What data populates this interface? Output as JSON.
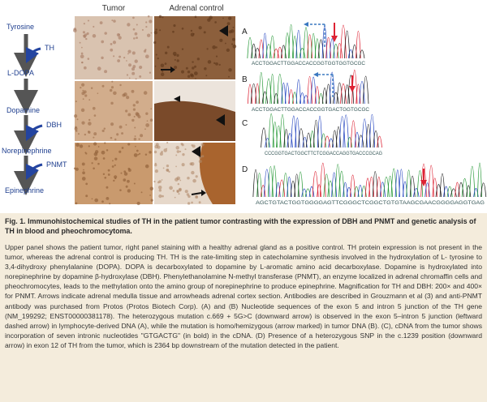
{
  "figure": {
    "pathway": {
      "steps": [
        "Tyrosine",
        "L-DOPA",
        "Dopamine",
        "Norepinephrine",
        "Epinephrine"
      ],
      "enzymes": [
        "TH",
        "DBH",
        "PNMT"
      ]
    },
    "columns": [
      "Tumor",
      "Adrenal control"
    ],
    "panels": [
      {
        "letter": "A",
        "sequence": "ACCTGGACTTGGACCACCGGTGGTGGTGCGC"
      },
      {
        "letter": "B",
        "sequence": "ACCTGGACTTGGACCACCGGTGACTGGTGCGC"
      },
      {
        "letter": "C",
        "sequence": "CCCGGTGACTGGCTTCTCGGACCAGGTGACCCGCAG"
      },
      {
        "letter": "D",
        "sequence": "AGCTGTACTGGTGGGGAGTTCGGGCTCGGCTGTGTAAGCGAACGGGGAGGTGAG"
      }
    ]
  },
  "caption": {
    "title": "Fig. 1.  Immunohistochemical studies of TH in the patient tumor contrasting with the expression of DBH and PNMT and genetic analysis of TH in blood and pheochromocytoma.",
    "body": "Upper panel shows the patient tumor, right panel staining with a healthy adrenal gland as a positive control. TH protein expression is not present in the tumor, whereas the adrenal control is producing TH. TH is the rate-limiting step in catecholamine synthesis involved in the hydroxylation of L- tyrosine to 3,4-dihydroxy phenylalanine (DOPA). DOPA is decarboxylated to dopamine by L-aromatic amino acid decarboxylase. Dopamine is hydroxylated into norepinephrine by dopamine β-hydroxylase (DBH). Phenylethanolamine N-methyl transferase (PNMT), an enzyme localized in adrenal chromaffin cells and pheochromocytes, leads to the methylation onto the amino group of norepinephrine to produce epinephrine. Magnification for TH and DBH: 200× and 400× for PNMT. Arrows indicate adrenal medulla tissue and arrowheads adrenal cortex section. Antibodies are described in Grouzmann et al (3) and anti-PNMT antibody was purchased from Protos (Protos Biotech Corp). (A) and (B) Nucleotide sequences of the exon 5 and intron 5 junction of the TH gene (NM_199292; ENST00000381178). The heterozygous mutation c.669 + 5G>C (downward arrow) is observed in the exon 5–intron 5 junction (leftward dashed arrow) in lymphocyte-derived DNA (A), while the mutation is homo/hemizygous (arrow marked) in tumor DNA (B). (C), cDNA from the tumor shows incorporation of seven intronic nucleotides \"GTGACTG\" (in bold) in the cDNA. (D) Presence of a heterozygous SNP in the c.1239 position (downward arrow) in exon 12 of TH from the tumor, which is 2364 bp downstream of the mutation detected in the patient."
  }
}
